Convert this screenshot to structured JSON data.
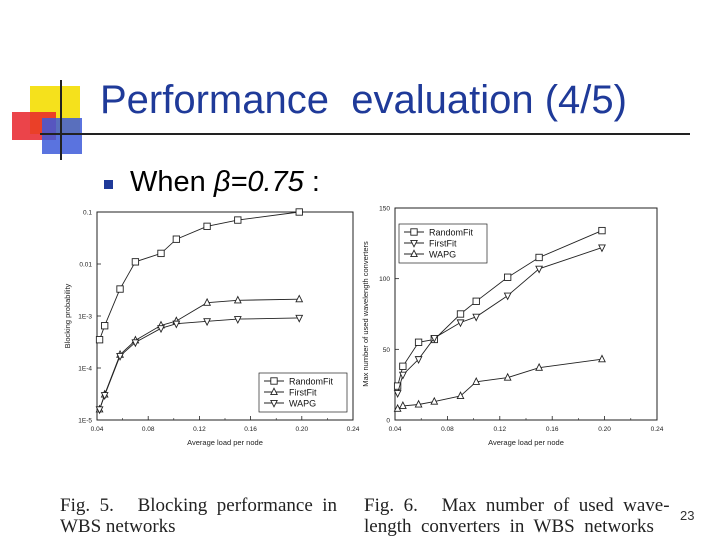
{
  "slide": {
    "title": "Performance  evaluation (4/5)",
    "bullet_prefix": "When ",
    "bullet_symbol": "β=0.75",
    "bullet_suffix": " :",
    "page_number": "23",
    "caption_left_line1": "Fig.  5.     Blocking  performance  in",
    "caption_left_line2": "WBS networks",
    "caption_right_line1": "Fig.  6.     Max  number  of  used  wave-",
    "caption_right_line2": "length  converters  in  WBS  networks",
    "colors": {
      "title": "#1f3a99",
      "deco_yellow": "#f5e11c",
      "deco_red": "#e8232a",
      "deco_blue": "#3d5bd9"
    }
  },
  "chart_data": [
    {
      "type": "line",
      "title": "",
      "xlabel": "Average load per node",
      "ylabel": "Blocking probability",
      "y_scale": "log",
      "xlim": [
        0.04,
        0.24
      ],
      "ylim": [
        1e-05,
        0.1
      ],
      "x_ticks": [
        "0.04",
        "0.08",
        "0.12",
        "0.16",
        "0.20",
        "0.24"
      ],
      "y_ticks": [
        "1E-5",
        "1E-4",
        "1E-3",
        "0.01",
        "0.1"
      ],
      "legend_position": "bottom-right",
      "grid": false,
      "series": [
        {
          "name": "RandomFit",
          "marker": "square",
          "x": [
            0.042,
            0.046,
            0.058,
            0.07,
            0.09,
            0.102,
            0.126,
            0.15,
            0.198
          ],
          "y": [
            0.00035,
            0.00065,
            0.0033,
            0.011,
            0.016,
            0.03,
            0.053,
            0.07,
            0.1
          ]
        },
        {
          "name": "FirstFit",
          "marker": "triangle-up",
          "x": [
            0.042,
            0.046,
            0.058,
            0.07,
            0.09,
            0.102,
            0.126,
            0.15,
            0.198
          ],
          "y": [
            1.6e-05,
            3.1e-05,
            0.00018,
            0.00034,
            0.00066,
            0.0008,
            0.0018,
            0.002,
            0.0021
          ]
        },
        {
          "name": "WAPG",
          "marker": "triangle-down",
          "x": [
            0.042,
            0.046,
            0.058,
            0.07,
            0.09,
            0.102,
            0.126,
            0.15,
            0.198
          ],
          "y": [
            1.6e-05,
            3e-05,
            0.00017,
            0.00031,
            0.00058,
            0.00071,
            0.00079,
            0.00087,
            0.00092
          ]
        }
      ]
    },
    {
      "type": "line",
      "title": "",
      "xlabel": "Average load per node",
      "ylabel": "Max number of used wavelength converters",
      "xlim": [
        0.04,
        0.24
      ],
      "ylim": [
        0,
        150
      ],
      "x_ticks": [
        "0.04",
        "0.08",
        "0.12",
        "0.16",
        "0.20",
        "0.24"
      ],
      "y_ticks": [
        "0",
        "50",
        "100",
        "150"
      ],
      "legend_position": "top-left",
      "grid": false,
      "series": [
        {
          "name": "RandomFit",
          "marker": "square",
          "x": [
            0.042,
            0.046,
            0.058,
            0.07,
            0.09,
            0.102,
            0.126,
            0.15,
            0.198
          ],
          "y": [
            24,
            38,
            55,
            57,
            75,
            84,
            101,
            115,
            134
          ]
        },
        {
          "name": "FirstFit",
          "marker": "triangle-down",
          "x": [
            0.042,
            0.046,
            0.058,
            0.07,
            0.09,
            0.102,
            0.126,
            0.15,
            0.198
          ],
          "y": [
            19,
            32,
            43,
            58,
            69,
            73,
            88,
            107,
            122
          ]
        },
        {
          "name": "WAPG",
          "marker": "triangle-up",
          "x": [
            0.042,
            0.046,
            0.058,
            0.07,
            0.09,
            0.102,
            0.126,
            0.15,
            0.198
          ],
          "y": [
            8,
            10,
            11,
            13,
            17,
            27,
            30,
            37,
            43
          ]
        }
      ]
    }
  ]
}
